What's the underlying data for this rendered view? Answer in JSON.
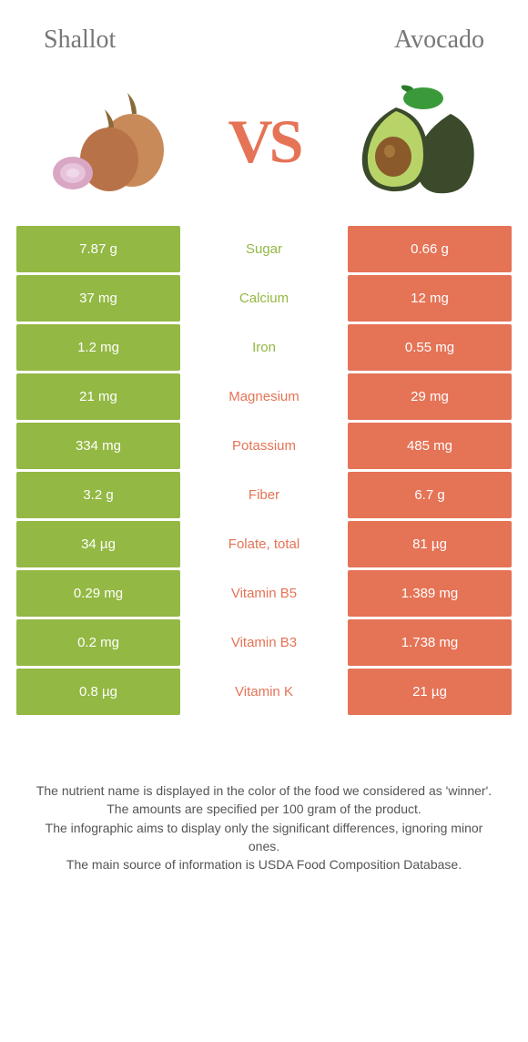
{
  "colors": {
    "green": "#93b843",
    "orange": "#e57356",
    "mid_bg": "#ffffff",
    "title_text": "#777777",
    "footer_text": "#555555"
  },
  "foods": {
    "left": "Shallot",
    "right": "Avocado"
  },
  "vs_label": "VS",
  "rows": [
    {
      "left": "7.87 g",
      "label": "Sugar",
      "right": "0.66 g",
      "winner": "left"
    },
    {
      "left": "37 mg",
      "label": "Calcium",
      "right": "12 mg",
      "winner": "left"
    },
    {
      "left": "1.2 mg",
      "label": "Iron",
      "right": "0.55 mg",
      "winner": "left"
    },
    {
      "left": "21 mg",
      "label": "Magnesium",
      "right": "29 mg",
      "winner": "right"
    },
    {
      "left": "334 mg",
      "label": "Potassium",
      "right": "485 mg",
      "winner": "right"
    },
    {
      "left": "3.2 g",
      "label": "Fiber",
      "right": "6.7 g",
      "winner": "right"
    },
    {
      "left": "34 µg",
      "label": "Folate, total",
      "right": "81 µg",
      "winner": "right"
    },
    {
      "left": "0.29 mg",
      "label": "Vitamin B5",
      "right": "1.389 mg",
      "winner": "right"
    },
    {
      "left": "0.2 mg",
      "label": "Vitamin B3",
      "right": "1.738 mg",
      "winner": "right"
    },
    {
      "left": "0.8 µg",
      "label": "Vitamin K",
      "right": "21 µg",
      "winner": "right"
    }
  ],
  "footer_lines": [
    "The nutrient name is displayed in the color of the food we considered as 'winner'.",
    "The amounts are specified per 100 gram of the product.",
    "The infographic aims to display only the significant differences, ignoring minor ones.",
    "The main source of information is USDA Food Composition Database."
  ]
}
